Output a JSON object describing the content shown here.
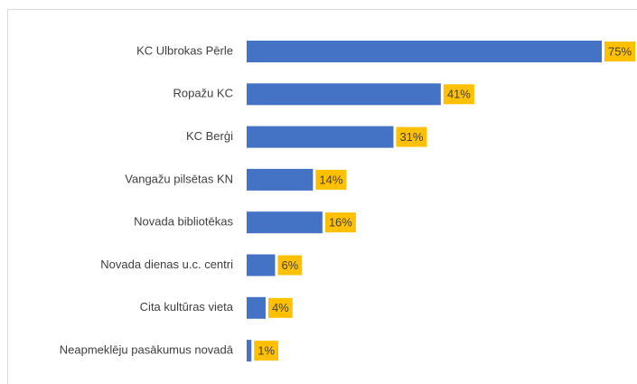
{
  "chart_data": {
    "type": "bar",
    "orientation": "horizontal",
    "categories": [
      "KC Ulbrokas Pērle",
      "Ropažu KC",
      "KC Berģi",
      "Vangažu pilsētas KN",
      "Novada bibliotēkas",
      "Novada dienas u.c. centri",
      "Cita kultūras vieta",
      "Neapmeklēju pasākumus novadā"
    ],
    "values": [
      75,
      41,
      31,
      14,
      16,
      6,
      4,
      1
    ],
    "value_labels": [
      "75%",
      "41%",
      "31%",
      "14%",
      "16%",
      "6%",
      "4%",
      "1%"
    ],
    "color": "#4472c4",
    "label_color": "#ffc000"
  }
}
